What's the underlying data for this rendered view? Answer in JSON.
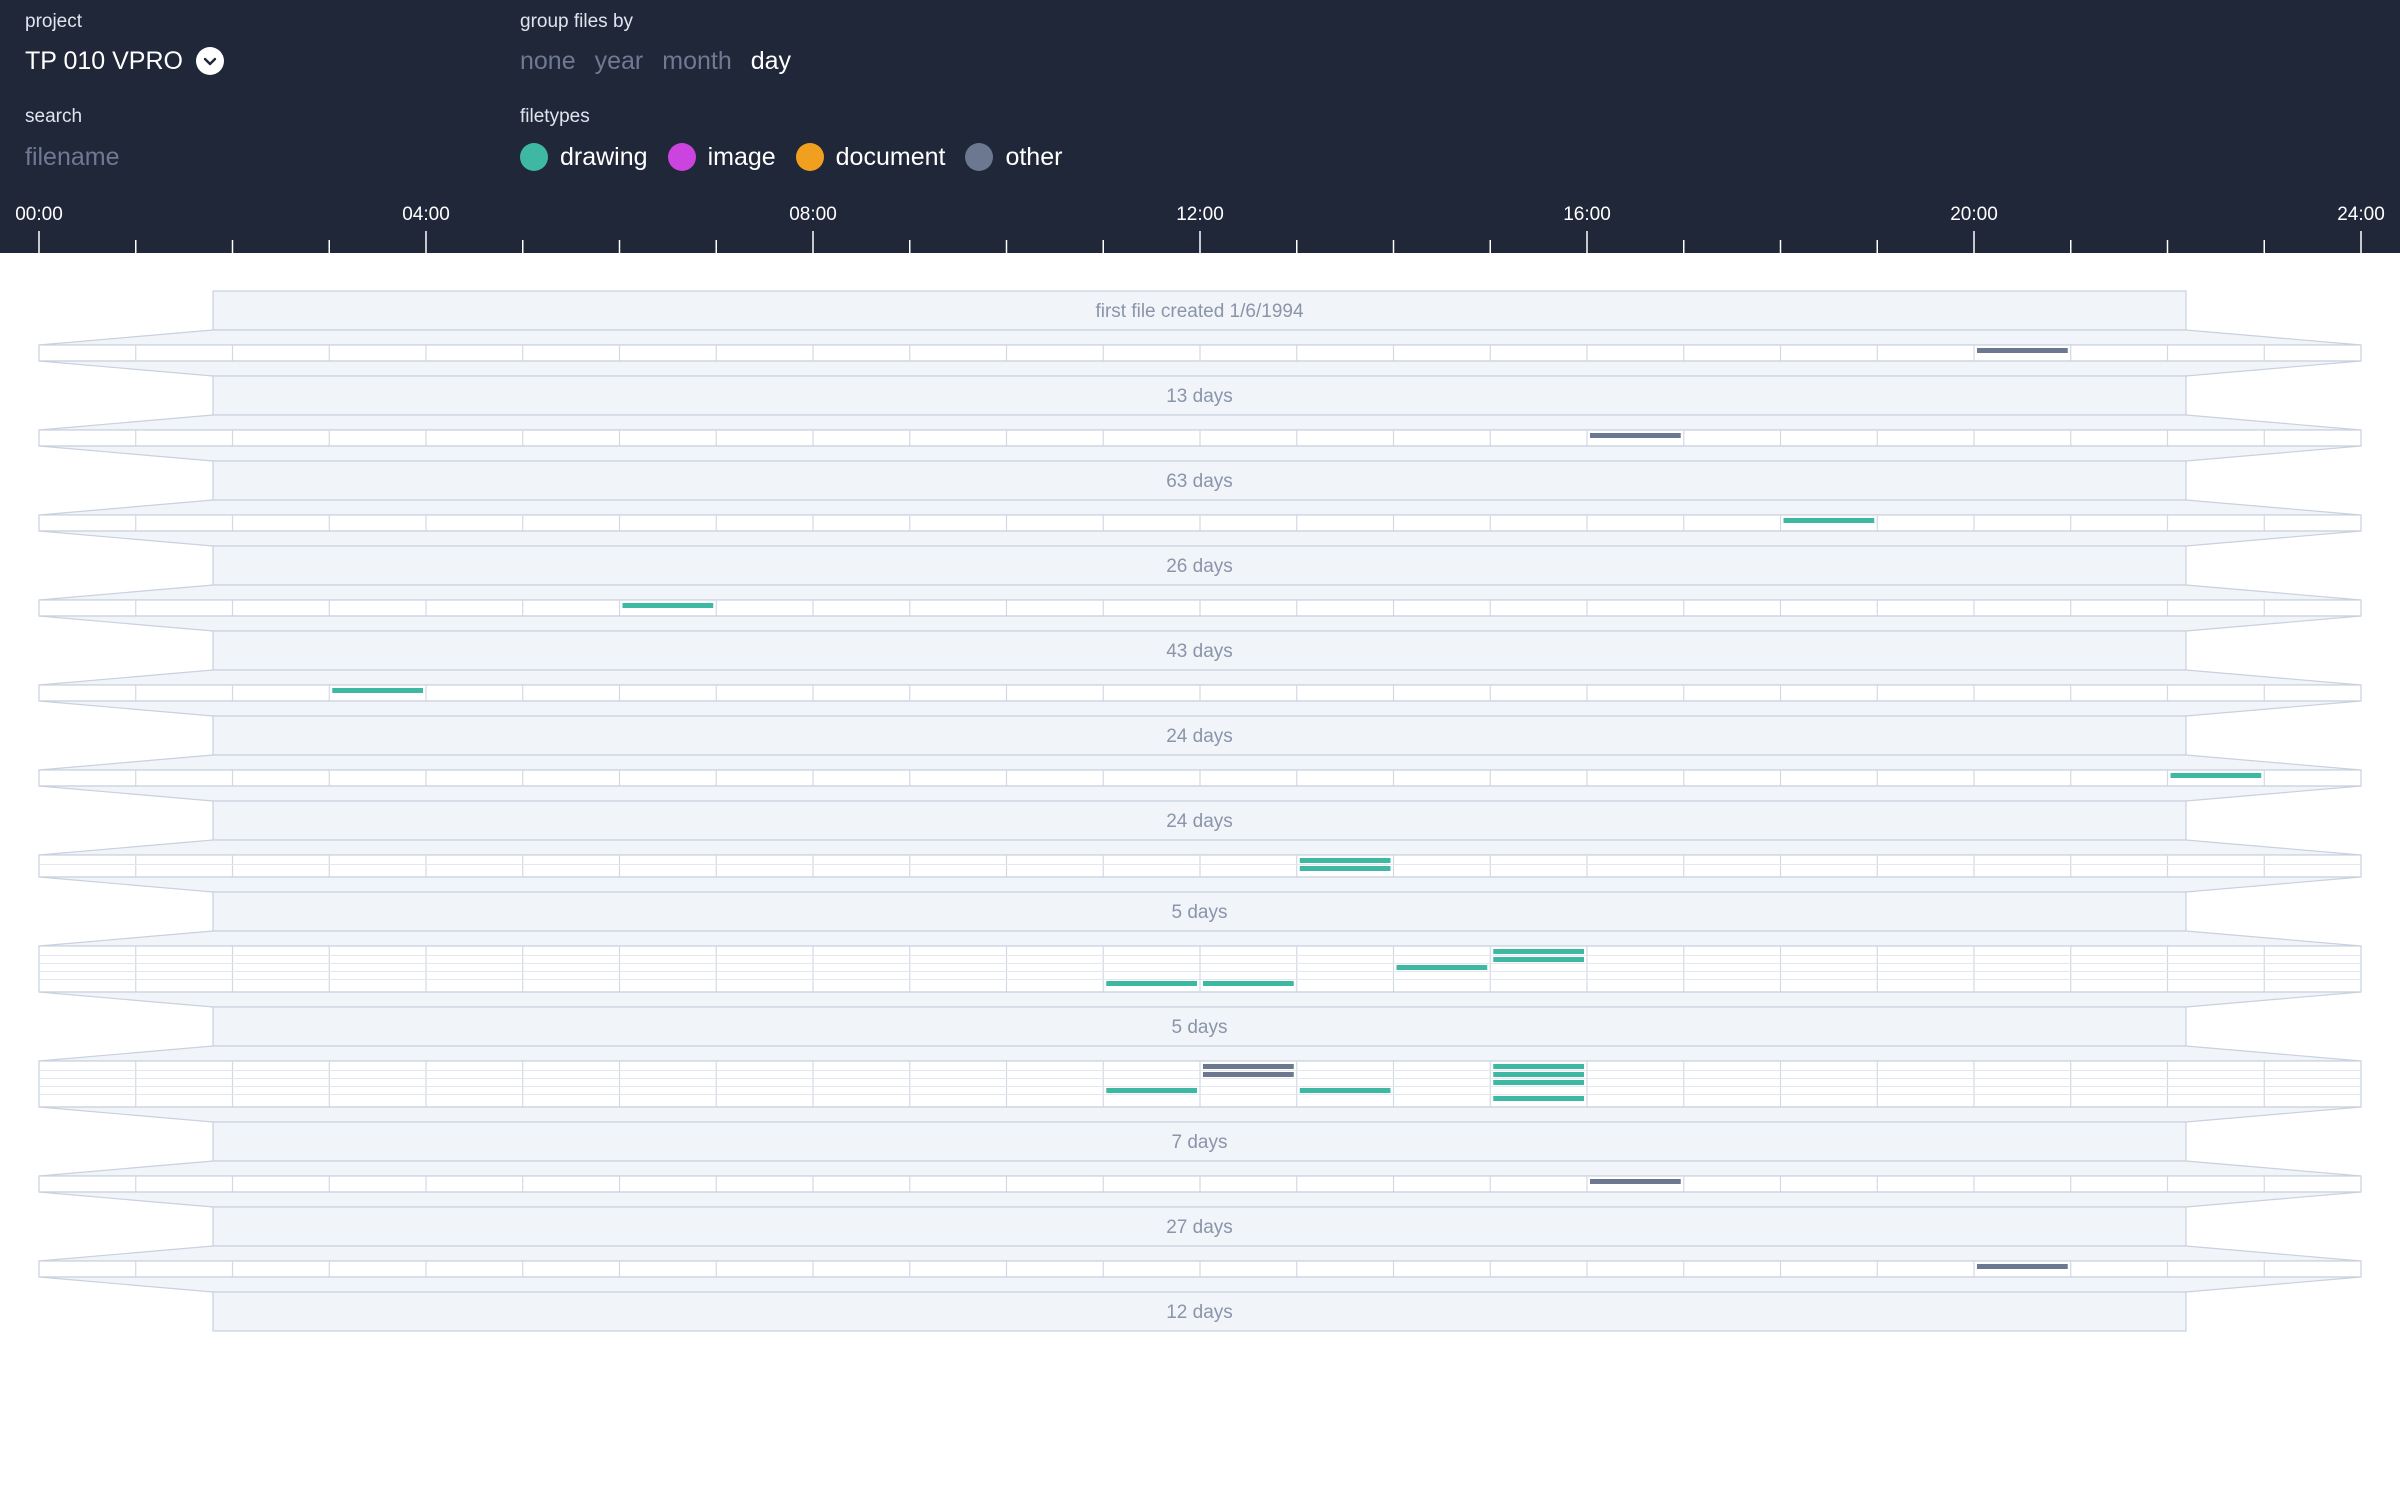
{
  "header": {
    "project": {
      "label": "project",
      "value": "TP 010 VPRO"
    },
    "group_by": {
      "label": "group files by",
      "options": [
        "none",
        "year",
        "month",
        "day"
      ],
      "selected": "day"
    },
    "search": {
      "label": "search",
      "placeholder": "filename",
      "value": ""
    },
    "filetypes": {
      "label": "filetypes",
      "items": [
        {
          "name": "drawing",
          "color": "#3fb8a3"
        },
        {
          "name": "image",
          "color": "#cc44e0"
        },
        {
          "name": "document",
          "color": "#f0a01e"
        },
        {
          "name": "other",
          "color": "#6b7890"
        }
      ]
    }
  },
  "time_axis": {
    "labels": [
      "00:00",
      "04:00",
      "08:00",
      "12:00",
      "16:00",
      "20:00",
      "24:00"
    ]
  },
  "timeline": {
    "days": [
      {
        "gap_label": "first file created 1/6/1994",
        "files": [
          {
            "type": "other",
            "hour": 20,
            "lane": 0
          }
        ]
      },
      {
        "gap_label": "13 days",
        "files": [
          {
            "type": "other",
            "hour": 16,
            "lane": 0
          }
        ]
      },
      {
        "gap_label": "63 days",
        "files": [
          {
            "type": "drawing",
            "hour": 18,
            "lane": 0
          }
        ]
      },
      {
        "gap_label": "26 days",
        "files": [
          {
            "type": "drawing",
            "hour": 6,
            "lane": 0
          }
        ]
      },
      {
        "gap_label": "43 days",
        "files": [
          {
            "type": "drawing",
            "hour": 3,
            "lane": 0
          }
        ]
      },
      {
        "gap_label": "24 days",
        "files": [
          {
            "type": "drawing",
            "hour": 22,
            "lane": 0
          }
        ]
      },
      {
        "gap_label": "24 days",
        "files": [
          {
            "type": "drawing",
            "hour": 13,
            "lane": 0
          },
          {
            "type": "drawing",
            "hour": 13,
            "lane": 1
          }
        ]
      },
      {
        "gap_label": "5 days",
        "files": [
          {
            "type": "drawing",
            "hour": 15,
            "lane": 0
          },
          {
            "type": "drawing",
            "hour": 15,
            "lane": 1
          },
          {
            "type": "drawing",
            "hour": 14,
            "lane": 2
          },
          {
            "type": "drawing",
            "hour": 11,
            "lane": 4
          },
          {
            "type": "drawing",
            "hour": 12,
            "lane": 4
          }
        ]
      },
      {
        "gap_label": "5 days",
        "files": [
          {
            "type": "other",
            "hour": 12,
            "lane": 0
          },
          {
            "type": "other",
            "hour": 12,
            "lane": 1
          },
          {
            "type": "drawing",
            "hour": 15,
            "lane": 0
          },
          {
            "type": "drawing",
            "hour": 15,
            "lane": 1
          },
          {
            "type": "drawing",
            "hour": 15,
            "lane": 2
          },
          {
            "type": "drawing",
            "hour": 11,
            "lane": 3
          },
          {
            "type": "drawing",
            "hour": 13,
            "lane": 3
          },
          {
            "type": "drawing",
            "hour": 15,
            "lane": 4
          }
        ]
      },
      {
        "gap_label": "7 days",
        "files": [
          {
            "type": "other",
            "hour": 16,
            "lane": 0
          }
        ]
      },
      {
        "gap_label": "27 days",
        "files": [
          {
            "type": "other",
            "hour": 20,
            "lane": 0
          }
        ]
      },
      {
        "gap_label": "12 days",
        "files": []
      }
    ]
  }
}
